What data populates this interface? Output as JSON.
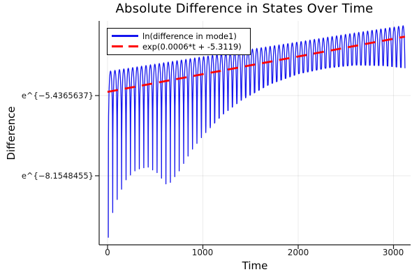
{
  "title": "Absolute Difference in States Over Time",
  "chart_data": {
    "type": "line",
    "title": "Absolute Difference in States Over Time",
    "xlabel": "Time",
    "ylabel": "Difference",
    "grid": true,
    "legend_position": "top-left-inside",
    "y_axis_note": "natural-log scale, ticks shown as e^{value}",
    "xticks": [
      0,
      1000,
      2000,
      3000
    ],
    "ytick_labels": [
      "e^{−5.4365637}",
      "e^{−8.1548455}"
    ],
    "ytick_ln_values": [
      -5.4365637,
      -8.1548455
    ],
    "xlim": [
      -88,
      3183
    ],
    "ylim_ln": [
      -10.47,
      -2.91
    ],
    "series": [
      {
        "name": "ln(difference in mode1)",
        "style": "solid-oscillation",
        "color": "#1414ee",
        "line_width": 1.3,
        "spike_period": 46.5,
        "t_start": 8,
        "t_end": 3123.5,
        "envelope_top": [
          [
            0,
            -4.62
          ],
          [
            500,
            -4.37
          ],
          [
            1000,
            -4.12
          ],
          [
            1500,
            -3.87
          ],
          [
            2000,
            -3.62
          ],
          [
            2500,
            -3.36
          ],
          [
            3100,
            -3.07
          ]
        ],
        "envelope_bottom": [
          [
            0,
            -10.4
          ],
          [
            60,
            -9.3
          ],
          [
            120,
            -8.8
          ],
          [
            200,
            -8.25
          ],
          [
            300,
            -7.95
          ],
          [
            420,
            -7.85
          ],
          [
            520,
            -8.05
          ],
          [
            630,
            -8.5
          ],
          [
            750,
            -8.0
          ],
          [
            880,
            -7.3
          ],
          [
            1000,
            -6.8
          ],
          [
            1200,
            -6.1
          ],
          [
            1400,
            -5.6
          ],
          [
            1700,
            -5.05
          ],
          [
            2000,
            -4.7
          ],
          [
            2300,
            -4.5
          ],
          [
            2600,
            -4.4
          ],
          [
            2900,
            -4.42
          ],
          [
            3123.5,
            -4.5
          ]
        ]
      },
      {
        "name": "exp(0.0006*t + -5.3119)",
        "style": "dashed-line",
        "color": "#ff0000",
        "line_width": 2.8,
        "slope": 0.0006,
        "intercept": -5.3119,
        "t_start": 0,
        "t_end": 3120,
        "dash": [
          15,
          10
        ]
      }
    ],
    "colors": {
      "axis": "#1a1a1a",
      "grid": "rgba(0,0,0,0.08)",
      "background": "#ffffff"
    }
  }
}
